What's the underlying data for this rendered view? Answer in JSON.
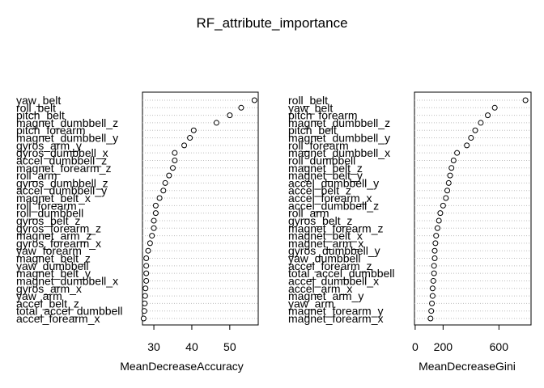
{
  "title": "RF_attribute_importance",
  "chart_data": [
    {
      "type": "scatter",
      "xlabel": "MeanDecreaseAccuracy",
      "xlim": [
        27,
        57.5
      ],
      "xticks": [
        30,
        40,
        50
      ],
      "grid": "dotted horizontal lines",
      "labels": [
        "yaw_belt",
        "roll_belt",
        "pitch_belt",
        "magnet_dumbbell_z",
        "pitch_forearm",
        "magnet_dumbbell_y",
        "gyros_arm_y",
        "gyros_dumbbell_x",
        "accel_dumbbell_z",
        "magnet_forearm_z",
        "roll_arm",
        "gyros_dumbbell_z",
        "accel_dumbbell_y",
        "magnet_belt_x",
        "roll_forearm",
        "roll_dumbbell",
        "gyros_belt_z",
        "gyros_forearm_z",
        "magnet_arm_z",
        "gyros_forearm_x",
        "yaw_forearm",
        "magnet_belt_z",
        "yaw_dumbbell",
        "magnet_belt_y",
        "magnet_dumbbell_x",
        "gyros_arm_x",
        "yaw_arm",
        "accel_belt_z",
        "total_accel_dumbbell",
        "accel_forearm_x"
      ],
      "values": [
        56.5,
        53,
        50,
        46.5,
        40.5,
        39.5,
        38,
        35.5,
        35.5,
        35,
        34,
        33,
        32.5,
        31.5,
        30.5,
        30.5,
        30,
        30,
        29.5,
        29,
        28.5,
        28,
        28,
        28,
        28,
        27.8,
        27.7,
        27.6,
        27.5,
        27.3
      ]
    },
    {
      "type": "scatter",
      "xlabel": "MeanDecreaseGini",
      "xlim": [
        -5,
        830
      ],
      "xticks": [
        0,
        200,
        600
      ],
      "grid": "dotted horizontal lines",
      "labels": [
        "roll_belt",
        "yaw_belt",
        "pitch_forearm",
        "magnet_dumbbell_z",
        "pitch_belt",
        "magnet_dumbbell_y",
        "roll_forearm",
        "magnet_dumbbell_x",
        "roll_dumbbell",
        "magnet_belt_z",
        "magnet_belt_y",
        "accel_dumbbell_y",
        "accel_belt_z",
        "accel_forearm_x",
        "accel_dumbbell_z",
        "roll_arm",
        "gyros_belt_z",
        "magnet_forearm_z",
        "magnet_belt_x",
        "magnet_arm_x",
        "gyros_dumbbell_y",
        "yaw_dumbbell",
        "accel_forearm_z",
        "total_accel_dumbbell",
        "accel_dumbbell_x",
        "accel_arm_x",
        "magnet_arm_y",
        "yaw_arm",
        "magnet_forearm_y",
        "magnet_forearm_x"
      ],
      "values": [
        790,
        570,
        520,
        470,
        430,
        400,
        370,
        300,
        275,
        260,
        250,
        240,
        230,
        220,
        200,
        180,
        170,
        160,
        150,
        145,
        140,
        140,
        135,
        135,
        130,
        125,
        125,
        120,
        115,
        110
      ]
    }
  ]
}
